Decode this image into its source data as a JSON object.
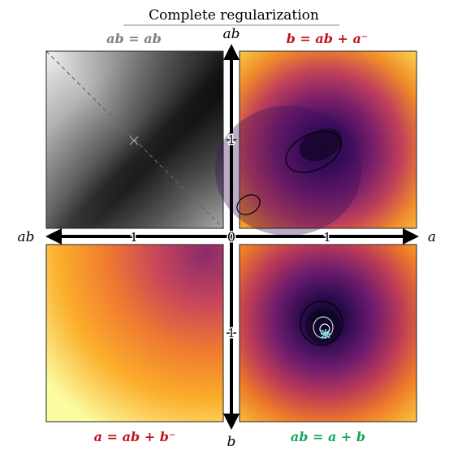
{
  "figure": {
    "title": "Complete regularization"
  },
  "chart_data": [
    {
      "type": "heatmap",
      "panel": "top-left",
      "label": "ab = ab",
      "label_color": "#7f7f7f",
      "colormap": "greys",
      "diagonal_dashed": true,
      "marker": "x",
      "x_direction": "ab (pointing left)",
      "y_direction": "ab (pointing up)"
    },
    {
      "type": "heatmap",
      "panel": "top-right",
      "label": "b = ab + a⁻",
      "label_color": "#c0141e",
      "colormap": "inferno",
      "contours": 2,
      "x_direction": "a (pointing right)",
      "y_direction": "ab (pointing up)"
    },
    {
      "type": "heatmap",
      "panel": "bottom-left",
      "label": "a = ab + b⁻",
      "label_color": "#c0141e",
      "colormap": "inferno",
      "x_direction": "ab (pointing left)",
      "y_direction": "b (pointing down)"
    },
    {
      "type": "heatmap",
      "panel": "bottom-right",
      "label": "ab = a + b",
      "label_color": "#1aa65a",
      "colormap": "inferno",
      "contours": 3,
      "marker": "star",
      "x_direction": "a (pointing right)",
      "y_direction": "b (pointing down)"
    }
  ],
  "axes": {
    "left_label": "ab",
    "right_label": "a",
    "top_label": "ab",
    "bottom_label": "b",
    "origin_label": "0",
    "x_left_tick": "1",
    "x_right_tick": "1",
    "y_top_tick": "1",
    "y_bottom_tick": "1"
  },
  "colors": {
    "gray_label": "#7f7f7f",
    "red_label": "#c0141e",
    "green_label": "#1aa65a",
    "cyan_marker": "#7fe3e0"
  }
}
